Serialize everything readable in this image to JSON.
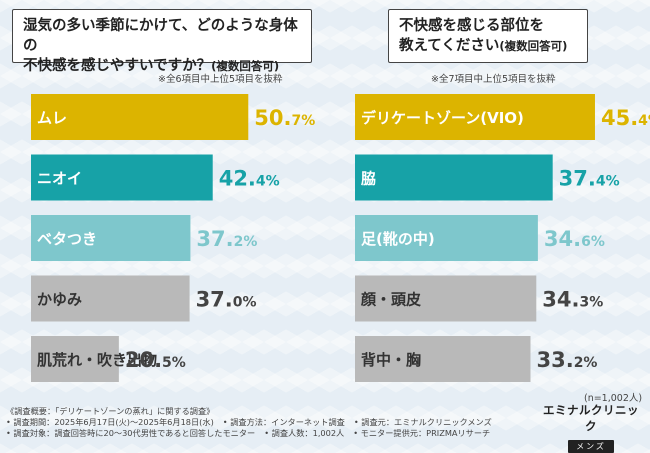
{
  "charts": [
    {
      "question": {
        "line1": "湿気の多い季節にかけて、どのような身体の",
        "line2": "不快感を感じやすいですか？",
        "line2_note": "(複数回答可)"
      },
      "note": "※全6項目中上位5項目を抜粋"
    },
    {
      "question": {
        "line1": "不快感を感じる部位を",
        "line2": "教えてください",
        "line2_note": "(複数回答可)"
      },
      "note": "※全7項目中上位5項目を抜粋"
    }
  ],
  "chart_data": [
    {
      "type": "bar",
      "orientation": "horizontal",
      "title": "湿気の多い季節にかけて、どのような身体の不快感を感じやすいですか？(複数回答可)",
      "categories": [
        "ムレ",
        "ニオイ",
        "ベタつき",
        "かゆみ",
        "肌荒れ・吹き出物"
      ],
      "values": [
        50.7,
        42.4,
        37.2,
        37.0,
        20.5
      ],
      "unit": "%",
      "bar_colors": [
        "#dcb400",
        "#17a2a7",
        "#7ec7cc",
        "#b9b9b9",
        "#b9b9b9"
      ],
      "value_colors": [
        "#dcb400",
        "#17a2a7",
        "#7ec7cc",
        "#444444",
        "#444444"
      ],
      "label_colors": [
        "#ffffff",
        "#ffffff",
        "#ffffff",
        "#333333",
        "#333333"
      ],
      "xlim": [
        0,
        70
      ]
    },
    {
      "type": "bar",
      "orientation": "horizontal",
      "title": "不快感を感じる部位を教えてください(複数回答可)",
      "categories": [
        "デリケートゾーン(VIO)",
        "脇",
        "足(靴の中)",
        "顔・頭皮",
        "背中・胸"
      ],
      "values": [
        45.4,
        37.4,
        34.6,
        34.3,
        33.2
      ],
      "unit": "%",
      "bar_colors": [
        "#dcb400",
        "#17a2a7",
        "#7ec7cc",
        "#b9b9b9",
        "#b9b9b9"
      ],
      "value_colors": [
        "#dcb400",
        "#17a2a7",
        "#7ec7cc",
        "#444444",
        "#444444"
      ],
      "label_colors": [
        "#ffffff",
        "#ffffff",
        "#ffffff",
        "#333333",
        "#333333"
      ],
      "xlim": [
        0,
        56
      ]
    }
  ],
  "n_note": "(n=1,002人)",
  "footer": {
    "line1": "《調査概要：「デリケートゾーンの蒸れ」に関する調査》",
    "line2a": "• 調査期間：2025年6月17日(火)～2025年6月18日(水)",
    "line2b": "• 調査方法：インターネット調査",
    "line2c": "• 調査元：エミナルクリニックメンズ",
    "line3a": "• 調査対象：調査回答時に20～30代男性であると回答したモニター",
    "line3b": "• 調査人数：1,002人",
    "line3c": "• モニター提供元：PRIZMAリサーチ"
  },
  "logo": {
    "main": "エミナルクリニック",
    "sub": "メンズ"
  }
}
